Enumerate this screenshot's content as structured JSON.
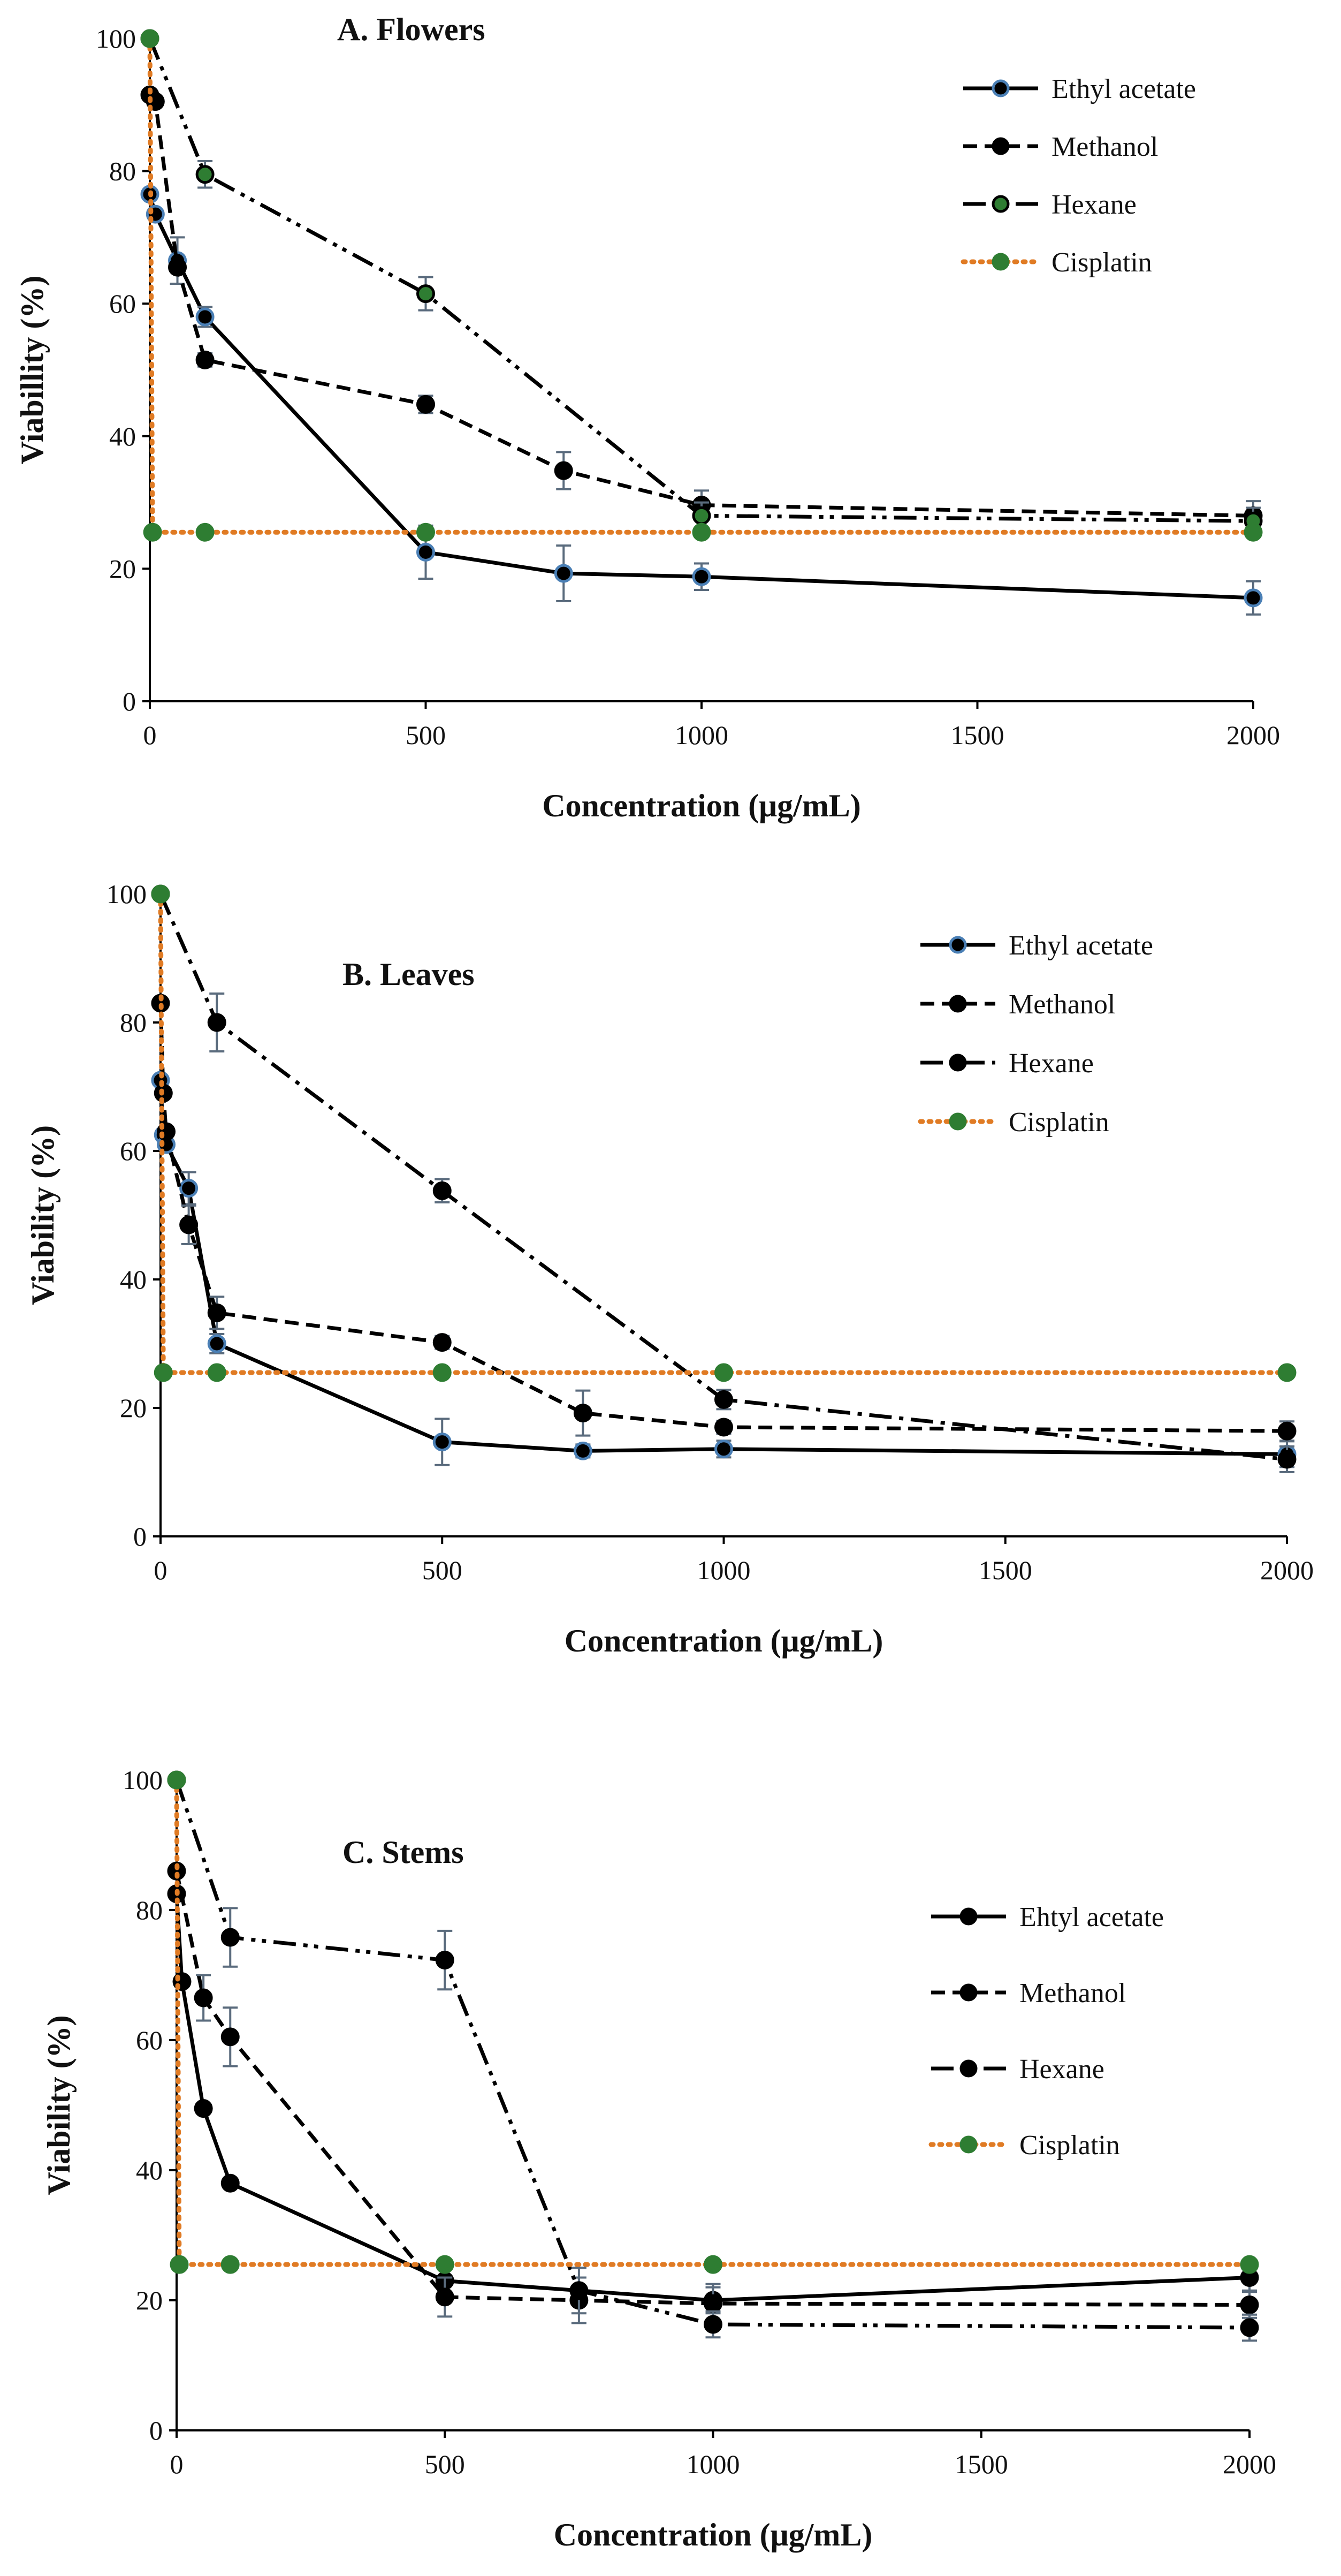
{
  "colors": {
    "axis": "#000000",
    "line": "#000000",
    "cisplatin_line": "#e07b24",
    "cisplatin_marker": "#2e7d32",
    "ethyl_marker_edge": "#4a7fb5",
    "errorbar": "#5a6b7d"
  },
  "chart_data": [
    {
      "type": "line",
      "title": "A.  Flowers",
      "xlabel": "Concentration  (μg/mL)",
      "ylabel": "Viabillity (%)",
      "xlim": [
        0,
        2000
      ],
      "ylim": [
        0,
        100
      ],
      "xticks": [
        0,
        500,
        1000,
        1500,
        2000
      ],
      "yticks": [
        0,
        20,
        40,
        60,
        80,
        100
      ],
      "grid": false,
      "legend_position": "top-right",
      "series": [
        {
          "name": "Ethyl acetate",
          "style": "solid",
          "marker_edge": "blue",
          "x": [
            0,
            10,
            50,
            100,
            500,
            750,
            1000,
            2000
          ],
          "y": [
            76.5,
            73.5,
            66.5,
            58,
            22.5,
            19.3,
            18.8,
            15.6
          ],
          "err": [
            0,
            0,
            3.5,
            1.5,
            4,
            4.2,
            2,
            2.5
          ]
        },
        {
          "name": "Methanol",
          "style": "dashed",
          "x": [
            0,
            10,
            50,
            100,
            500,
            750,
            1000,
            2000
          ],
          "y": [
            91.5,
            90.5,
            65.5,
            51.5,
            44.8,
            34.8,
            29.6,
            28
          ],
          "err": [
            0,
            0,
            0,
            1,
            1.3,
            2.8,
            2.2,
            2.2
          ]
        },
        {
          "name": "Hexane",
          "style": "dash-dot-dot",
          "x": [
            0,
            100,
            500,
            1000,
            2000
          ],
          "y": [
            100,
            79.5,
            61.5,
            28,
            27.2
          ],
          "err": [
            0,
            2,
            2.5,
            2,
            2
          ]
        },
        {
          "name": "Cisplatin",
          "style": "dotted",
          "x": [
            0,
            5,
            100,
            500,
            1000,
            2000
          ],
          "y": [
            100,
            25.5,
            25.5,
            25.5,
            25.5,
            25.5
          ],
          "err": [
            0,
            0,
            0,
            0,
            0,
            0
          ]
        }
      ]
    },
    {
      "type": "line",
      "title": "B. Leaves",
      "xlabel": "Concentration  (μg/mL)",
      "ylabel": "Viability  (%)",
      "xlim": [
        0,
        2000
      ],
      "ylim": [
        0,
        100
      ],
      "xticks": [
        0,
        500,
        1000,
        1500,
        2000
      ],
      "yticks": [
        0,
        20,
        40,
        60,
        80,
        100
      ],
      "grid": false,
      "legend_position": "top-right",
      "series": [
        {
          "name": "Ethyl acetate",
          "style": "solid",
          "marker_edge": "blue",
          "x": [
            0,
            5,
            10,
            50,
            100,
            500,
            750,
            1000,
            2000
          ],
          "y": [
            71,
            62.5,
            61,
            54.2,
            30,
            14.7,
            13.3,
            13.6,
            12.8
          ],
          "err": [
            0,
            0,
            0,
            2.5,
            1.5,
            3.6,
            1,
            1.3,
            2
          ]
        },
        {
          "name": "Methanol",
          "style": "dashed",
          "x": [
            0,
            5,
            10,
            50,
            100,
            500,
            750,
            1000,
            2000
          ],
          "y": [
            83,
            69,
            63,
            48.5,
            34.8,
            30.2,
            19.2,
            17,
            16.4
          ],
          "err": [
            0,
            0,
            0,
            3,
            2.5,
            1,
            3.5,
            1,
            1.5
          ]
        },
        {
          "name": "Hexane",
          "style": "dash-dot",
          "x": [
            0,
            100,
            500,
            1000,
            2000
          ],
          "y": [
            100,
            80,
            53.8,
            21.3,
            12
          ],
          "err": [
            0,
            4.5,
            1.8,
            1.5,
            2
          ]
        },
        {
          "name": "Cisplatin",
          "style": "dotted",
          "x": [
            0,
            5,
            100,
            500,
            1000,
            2000
          ],
          "y": [
            100,
            25.5,
            25.5,
            25.5,
            25.5,
            25.5
          ],
          "err": [
            0,
            0,
            0,
            0,
            0,
            0
          ]
        }
      ]
    },
    {
      "type": "line",
      "title": "C. Stems",
      "xlabel": "Concentration (μg/mL)",
      "ylabel": "Viability (%)",
      "xlim": [
        0,
        2000
      ],
      "ylim": [
        0,
        100
      ],
      "xticks": [
        0,
        500,
        1000,
        1500,
        2000
      ],
      "yticks": [
        0,
        20,
        40,
        60,
        80,
        100
      ],
      "grid": false,
      "legend_position": "top-right",
      "series": [
        {
          "name": "Ehtyl acetate",
          "style": "solid",
          "x": [
            0,
            10,
            50,
            100,
            500,
            1000,
            2000
          ],
          "y": [
            82.5,
            69,
            49.5,
            38,
            23,
            20,
            23.5
          ],
          "err": [
            0,
            0,
            0,
            0,
            2,
            2,
            2
          ]
        },
        {
          "name": "Methanol",
          "style": "dashed",
          "x": [
            0,
            50,
            100,
            500,
            750,
            1000,
            2000
          ],
          "y": [
            86,
            66.5,
            60.5,
            20.5,
            20,
            19.5,
            19.3
          ],
          "err": [
            0,
            3.5,
            4.5,
            3,
            3.5,
            3,
            2
          ]
        },
        {
          "name": "Hexane",
          "style": "dash-dot-dot",
          "x": [
            0,
            100,
            500,
            750,
            1000,
            2000
          ],
          "y": [
            100,
            75.8,
            72.3,
            21.5,
            16.3,
            15.8
          ],
          "err": [
            0,
            4.5,
            4.5,
            3.5,
            2,
            2
          ]
        },
        {
          "name": "Cisplatin",
          "style": "dotted",
          "x": [
            0,
            5,
            100,
            500,
            1000,
            2000
          ],
          "y": [
            100,
            25.5,
            25.5,
            25.5,
            25.5,
            25.5
          ],
          "err": [
            0,
            0,
            0,
            0,
            0,
            0
          ]
        }
      ]
    }
  ]
}
